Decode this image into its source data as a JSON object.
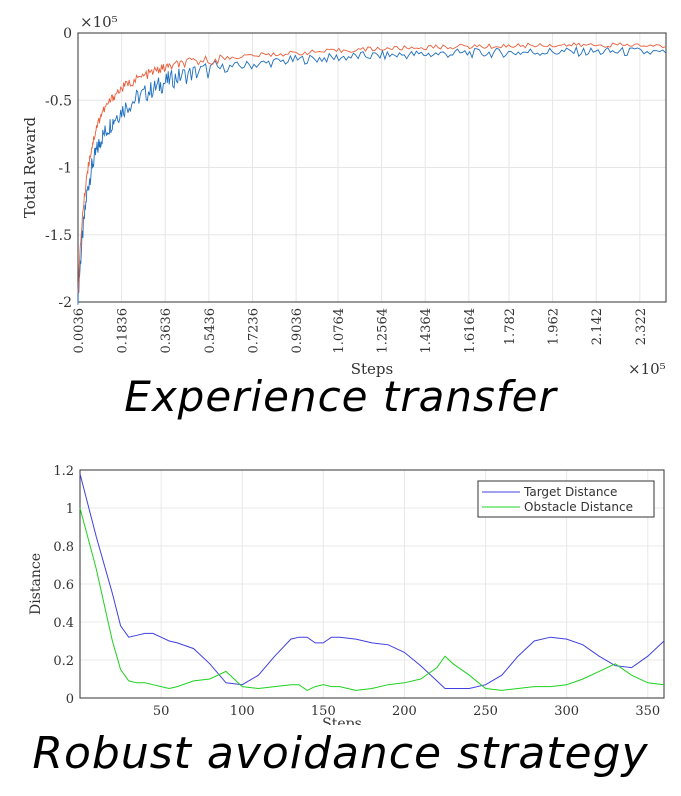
{
  "captions": {
    "top": "Experience transfer",
    "bottom": "Robust avoidance strategy"
  },
  "chart_data": [
    {
      "type": "line",
      "xlabel": "Steps",
      "ylabel": "Total Reward",
      "x_multiplier": "×10⁵",
      "y_multiplier": "×10⁵",
      "xlim": [
        0.0036,
        2.43
      ],
      "ylim": [
        -2,
        0
      ],
      "x_ticks": [
        "0.0036",
        "0.1836",
        "0.3636",
        "0.5436",
        "0.7236",
        "0.9036",
        "1.0764",
        "1.2564",
        "1.4364",
        "1.6164",
        "1.782",
        "1.962",
        "2.142",
        "2.322"
      ],
      "y_ticks": [
        "0",
        "-0.5",
        "-1",
        "-1.5",
        "-2"
      ],
      "grid": true,
      "series": [
        {
          "color": "#1f6fbf",
          "x": [
            0.0036,
            0.02,
            0.04,
            0.06,
            0.08,
            0.1,
            0.13,
            0.16,
            0.2,
            0.25,
            0.3,
            0.34,
            0.38,
            0.43,
            0.5,
            0.6,
            0.7,
            0.8,
            0.9,
            1.0,
            1.1,
            1.2,
            1.3,
            1.4,
            1.5,
            1.6,
            1.7,
            1.8,
            1.9,
            2.0,
            2.1,
            2.2,
            2.3,
            2.43
          ],
          "y": [
            -1.95,
            -1.55,
            -1.2,
            -1.0,
            -0.88,
            -0.78,
            -0.7,
            -0.62,
            -0.55,
            -0.48,
            -0.43,
            -0.39,
            -0.35,
            -0.32,
            -0.29,
            -0.26,
            -0.24,
            -0.22,
            -0.2,
            -0.19,
            -0.18,
            -0.17,
            -0.165,
            -0.16,
            -0.155,
            -0.15,
            -0.15,
            -0.145,
            -0.14,
            -0.14,
            -0.14,
            -0.14,
            -0.14,
            -0.15
          ]
        },
        {
          "color": "#e8603c",
          "x": [
            0.0036,
            0.02,
            0.04,
            0.06,
            0.08,
            0.1,
            0.13,
            0.16,
            0.2,
            0.25,
            0.3,
            0.34,
            0.38,
            0.43,
            0.5,
            0.6,
            0.7,
            0.8,
            0.9,
            1.0,
            1.1,
            1.2,
            1.3,
            1.4,
            1.5,
            1.6,
            1.7,
            1.8,
            1.9,
            2.0,
            2.1,
            2.2,
            2.3,
            2.43
          ],
          "y": [
            -1.9,
            -1.4,
            -1.05,
            -0.85,
            -0.7,
            -0.6,
            -0.52,
            -0.45,
            -0.39,
            -0.34,
            -0.3,
            -0.27,
            -0.25,
            -0.23,
            -0.21,
            -0.19,
            -0.17,
            -0.16,
            -0.15,
            -0.14,
            -0.13,
            -0.12,
            -0.115,
            -0.11,
            -0.105,
            -0.1,
            -0.1,
            -0.095,
            -0.09,
            -0.09,
            -0.09,
            -0.09,
            -0.09,
            -0.1
          ]
        }
      ]
    },
    {
      "type": "line",
      "xlabel": "Steps",
      "ylabel": "Distance",
      "xlim": [
        0,
        360
      ],
      "ylim": [
        0,
        1.2
      ],
      "x_ticks": [
        50,
        100,
        150,
        200,
        250,
        300,
        350
      ],
      "y_ticks": [
        0,
        0.2,
        0.4,
        0.6,
        0.8,
        1,
        1.2
      ],
      "grid": true,
      "legend_position": "top-right",
      "series": [
        {
          "name": "Target Distance",
          "color": "#4040e0",
          "x": [
            0,
            10,
            20,
            25,
            30,
            35,
            40,
            45,
            50,
            55,
            60,
            70,
            80,
            90,
            100,
            110,
            120,
            130,
            135,
            140,
            145,
            150,
            155,
            160,
            170,
            180,
            190,
            200,
            210,
            220,
            225,
            230,
            240,
            250,
            260,
            270,
            280,
            290,
            300,
            310,
            320,
            330,
            340,
            350,
            360
          ],
          "y": [
            1.18,
            0.85,
            0.55,
            0.38,
            0.32,
            0.33,
            0.34,
            0.34,
            0.32,
            0.3,
            0.29,
            0.26,
            0.18,
            0.08,
            0.07,
            0.12,
            0.22,
            0.31,
            0.32,
            0.32,
            0.29,
            0.29,
            0.32,
            0.32,
            0.31,
            0.29,
            0.28,
            0.24,
            0.17,
            0.09,
            0.05,
            0.05,
            0.05,
            0.07,
            0.12,
            0.22,
            0.3,
            0.32,
            0.31,
            0.28,
            0.22,
            0.17,
            0.16,
            0.22,
            0.3
          ]
        },
        {
          "name": "Obstacle Distance",
          "color": "#20d020",
          "x": [
            0,
            10,
            20,
            25,
            30,
            35,
            40,
            45,
            50,
            55,
            60,
            70,
            80,
            90,
            100,
            110,
            120,
            130,
            135,
            140,
            145,
            150,
            155,
            160,
            170,
            180,
            190,
            200,
            210,
            220,
            225,
            230,
            240,
            250,
            260,
            270,
            280,
            290,
            300,
            310,
            320,
            330,
            340,
            350,
            360
          ],
          "y": [
            1.0,
            0.68,
            0.3,
            0.15,
            0.09,
            0.08,
            0.08,
            0.07,
            0.06,
            0.05,
            0.06,
            0.09,
            0.1,
            0.14,
            0.06,
            0.05,
            0.06,
            0.07,
            0.07,
            0.04,
            0.06,
            0.07,
            0.06,
            0.06,
            0.04,
            0.05,
            0.07,
            0.08,
            0.1,
            0.16,
            0.22,
            0.18,
            0.12,
            0.05,
            0.04,
            0.05,
            0.06,
            0.06,
            0.07,
            0.1,
            0.14,
            0.18,
            0.12,
            0.08,
            0.07
          ]
        }
      ]
    }
  ]
}
